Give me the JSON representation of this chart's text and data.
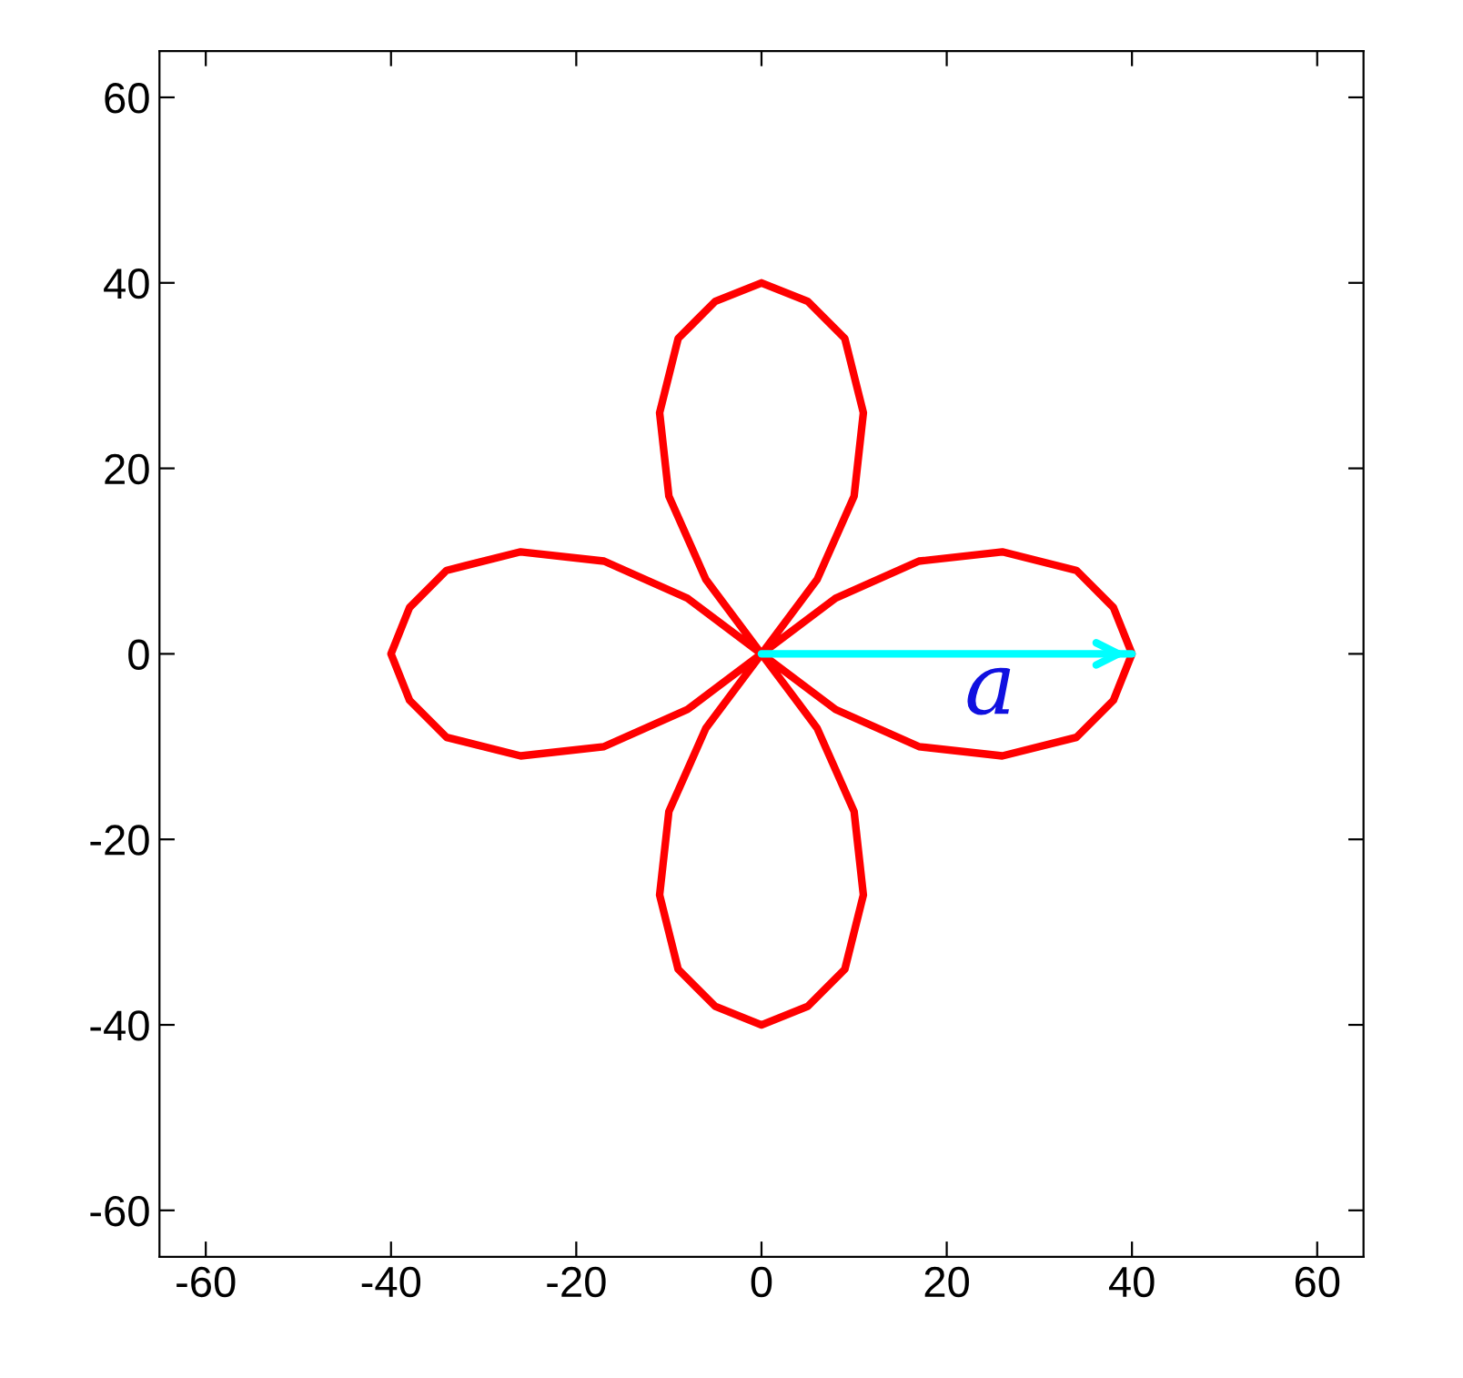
{
  "chart_data": {
    "type": "line",
    "series": [
      {
        "color": "#ff0000",
        "x": [
          0,
          8,
          17,
          26,
          34,
          38,
          40,
          null,
          0,
          8,
          17,
          26,
          34,
          38,
          40,
          null,
          -40,
          -38,
          -34,
          -26,
          -17,
          -8,
          0,
          null,
          -40,
          -38,
          -34,
          -26,
          -17,
          -8,
          0,
          null,
          -11,
          -9,
          -5,
          0,
          5,
          9,
          11,
          null,
          -11,
          -10,
          -6,
          0,
          null,
          0,
          6,
          10,
          11,
          null,
          -11,
          -9,
          -5,
          0,
          5,
          9,
          11,
          null,
          -11,
          -10,
          -6,
          0,
          null,
          0,
          6,
          10,
          11
        ],
        "values": [
          0,
          6,
          10,
          11,
          9,
          5,
          0,
          null,
          0,
          -6,
          -10,
          -11,
          -9,
          -5,
          0,
          null,
          0,
          5,
          9,
          11,
          10,
          6,
          0,
          null,
          0,
          -5,
          -9,
          -11,
          -10,
          -6,
          0,
          null,
          26,
          34,
          38,
          40,
          38,
          34,
          26,
          null,
          26,
          17,
          8,
          0,
          null,
          0,
          8,
          17,
          26,
          null,
          -26,
          -34,
          -38,
          -40,
          -38,
          -34,
          -26,
          null,
          -26,
          -17,
          -8,
          0,
          null,
          0,
          -8,
          -17,
          -26
        ]
      },
      {
        "color": "#00ffff",
        "x": [
          0,
          40
        ],
        "values": [
          0,
          0
        ]
      }
    ],
    "annotations": [
      "a"
    ],
    "xlim": [
      -65,
      65
    ],
    "ylim": [
      -65,
      65
    ],
    "xticks": [
      -60,
      -40,
      -20,
      0,
      20,
      40,
      60
    ],
    "yticks": [
      -60,
      -40,
      -20,
      0,
      20,
      40,
      60
    ],
    "grid": false,
    "legend": false,
    "marker": "none",
    "line_style": "solid"
  }
}
